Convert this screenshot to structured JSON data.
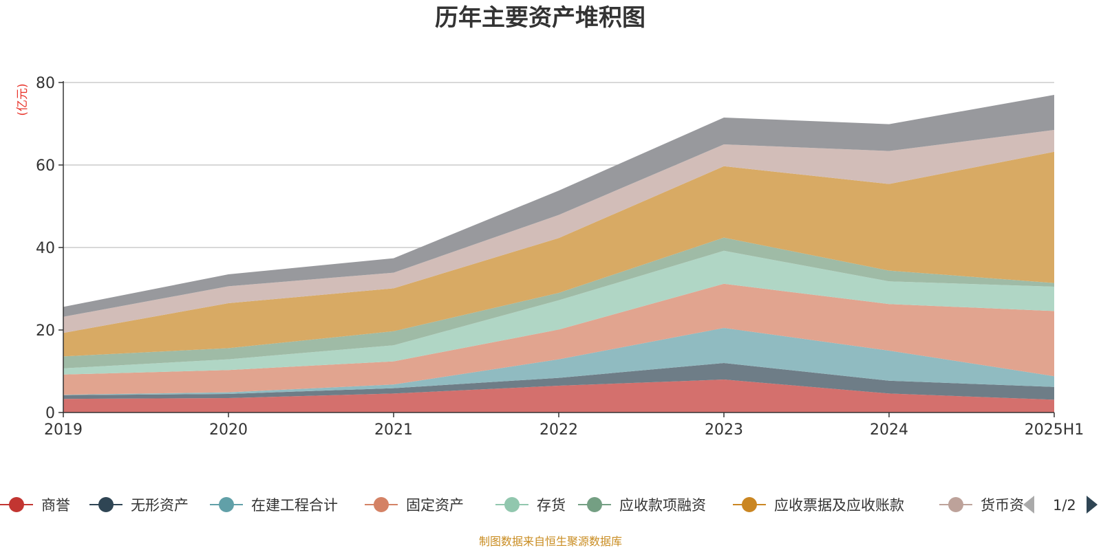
{
  "chart_data": {
    "type": "area",
    "stacked": true,
    "title": "历年主要资产堆积图",
    "unit_label": "(亿元)",
    "source_note": "制图数据来自恒生聚源数据库",
    "categories": [
      "2019",
      "2020",
      "2021",
      "2022",
      "2023",
      "2024",
      "2025H1"
    ],
    "ylim": [
      0,
      80
    ],
    "yticks": [
      0,
      20,
      40,
      60,
      80
    ],
    "grid": true,
    "legend_position": "bottom",
    "legend_page": "1/2",
    "series": [
      {
        "name": "商誉",
        "color": "#c23531",
        "fill": "#d4706d",
        "values": [
          3.3,
          3.5,
          4.6,
          6.5,
          8.0,
          4.6,
          3.1
        ]
      },
      {
        "name": "无形资产",
        "color": "#2f4554",
        "fill": "#6e7d87",
        "values": [
          0.9,
          1.0,
          1.3,
          1.9,
          4.0,
          3.1,
          3.1
        ]
      },
      {
        "name": "在建工程合计",
        "color": "#61a0a8",
        "fill": "#90bbc1",
        "values": [
          0.1,
          0.4,
          0.9,
          4.5,
          8.5,
          7.3,
          2.6
        ]
      },
      {
        "name": "固定资产",
        "color": "#d48265",
        "fill": "#e1a48f",
        "values": [
          4.9,
          5.4,
          5.6,
          7.2,
          10.7,
          11.3,
          15.8
        ]
      },
      {
        "name": "存货",
        "color": "#91c7ae",
        "fill": "#b0d6c5",
        "values": [
          1.5,
          2.6,
          3.9,
          7.1,
          8.0,
          5.5,
          5.9
        ]
      },
      {
        "name": "应收款项融资",
        "color": "#749f83",
        "fill": "#9fbba6",
        "values": [
          2.9,
          2.7,
          3.4,
          1.8,
          3.2,
          2.6,
          0.9
        ]
      },
      {
        "name": "应收票据及应收账款",
        "color": "#ca8622",
        "fill": "#d8aa64",
        "values": [
          5.7,
          10.9,
          10.4,
          13.3,
          17.3,
          21.0,
          31.8
        ]
      },
      {
        "name": "货币资金",
        "color": "#bda29a",
        "fill": "#d2bdb8",
        "values": [
          3.9,
          4.1,
          3.8,
          5.6,
          5.3,
          8.0,
          5.3
        ]
      },
      {
        "name": "",
        "color": "#6e7074",
        "fill": "#98999d",
        "values": [
          2.4,
          2.9,
          3.5,
          5.9,
          6.5,
          6.5,
          8.5
        ]
      }
    ]
  },
  "legend": {
    "items": [
      {
        "label": "商誉",
        "color": "#c23531"
      },
      {
        "label": "无形资产",
        "color": "#2f4554"
      },
      {
        "label": "在建工程合计",
        "color": "#61a0a8"
      },
      {
        "label": "固定资产",
        "color": "#d48265"
      },
      {
        "label": "存货",
        "color": "#91c7ae"
      },
      {
        "label": "应收款项融资",
        "color": "#749f83"
      },
      {
        "label": "应收票据及应收账款",
        "color": "#ca8622"
      },
      {
        "label": "货币资",
        "color": "#bda29a"
      }
    ]
  }
}
